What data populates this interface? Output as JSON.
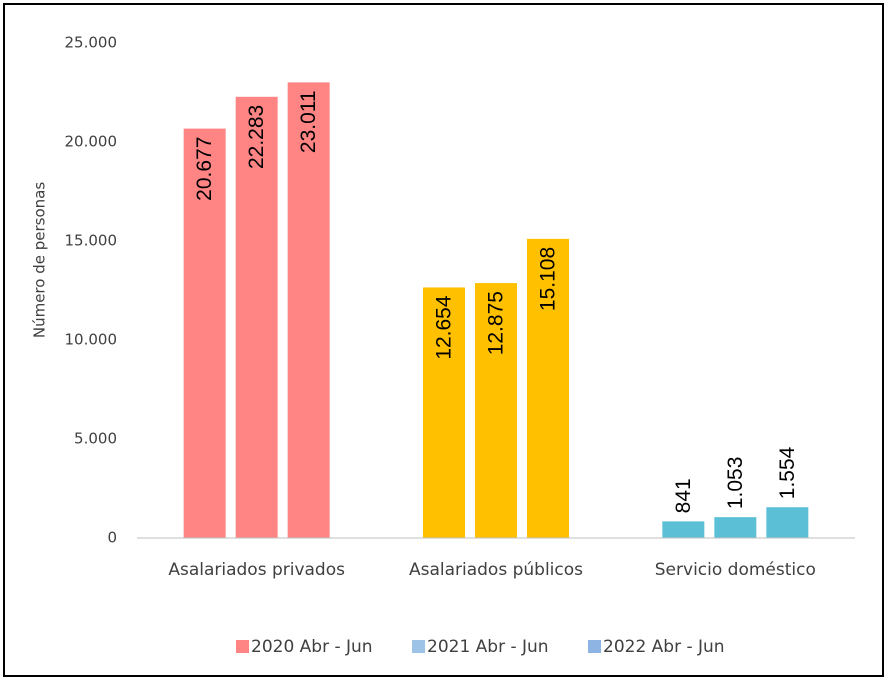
{
  "chart_data": {
    "type": "bar",
    "categories": [
      "Asalariados privados",
      "Asalariados públicos",
      "Servicio doméstico"
    ],
    "category_colors": [
      "#ff8585",
      "#ffc000",
      "#5bc0d6"
    ],
    "y_label": "Número de personas",
    "series": [
      {
        "name": "2020 Abr - Jun",
        "color": "#ff8585",
        "values": [
          20677,
          12654,
          841
        ],
        "value_labels": [
          "20.677",
          "12.654",
          "841"
        ]
      },
      {
        "name": "2021 Abr - Jun",
        "color": "#9dc3e6",
        "values": [
          22283,
          12875,
          1053
        ],
        "value_labels": [
          "22.283",
          "12.875",
          "1.053"
        ]
      },
      {
        "name": "2022 Abr - Jun",
        "color": "#8db4e2",
        "values": [
          23011,
          15108,
          1554
        ],
        "value_labels": [
          "23.011",
          "15.108",
          "1.554"
        ]
      }
    ],
    "ylim": [
      0,
      25000
    ],
    "yticks": [
      0,
      {
        "value": 5000,
        "label": "5.000"
      },
      {
        "value": 10000,
        "label": "10.000"
      },
      {
        "value": 15000,
        "label": "15.000"
      },
      {
        "value": 20000,
        "label": "20.000"
      },
      {
        "value": 25000,
        "label": "25.000"
      }
    ],
    "grid": false,
    "legend": "bottom"
  }
}
